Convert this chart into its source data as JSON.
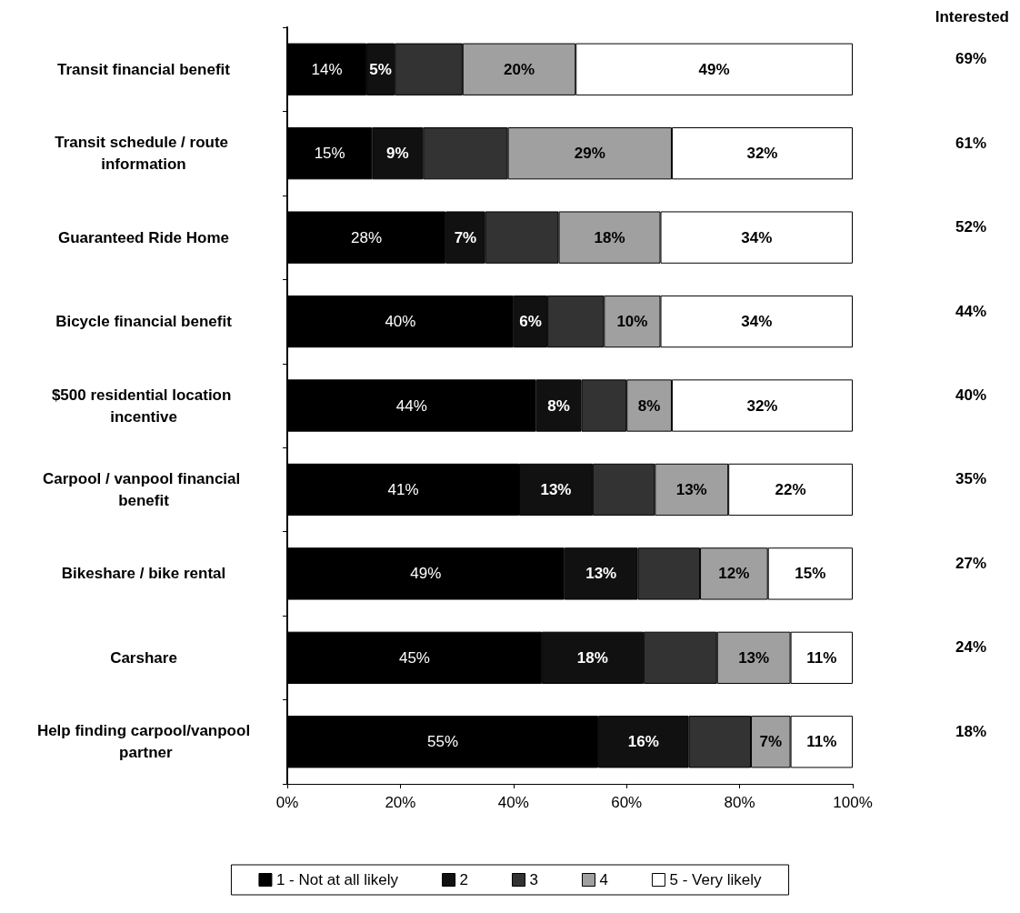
{
  "chart_data": {
    "type": "bar",
    "orientation": "horizontal",
    "stacked": true,
    "categories": [
      "Transit financial benefit",
      "Transit schedule / route information",
      "Guaranteed Ride Home",
      "Bicycle financial benefit",
      "$500 residential location incentive",
      "Carpool / vanpool financial benefit",
      "Bikeshare / bike rental",
      "Carshare",
      "Help finding carpool/vanpool partner"
    ],
    "series": [
      {
        "name": "1 - Not at all likely",
        "color": "#000000",
        "values": [
          14,
          15,
          28,
          40,
          44,
          41,
          49,
          45,
          55
        ],
        "value_labels": [
          "14%",
          "15%",
          "28%",
          "40%",
          "44%",
          "41%",
          "49%",
          "45%",
          "55%"
        ]
      },
      {
        "name": "2",
        "color": "#111111",
        "values": [
          5,
          9,
          7,
          6,
          8,
          13,
          13,
          18,
          16
        ],
        "value_labels": [
          "5%",
          "9%",
          "7%",
          "6%",
          "8%",
          "13%",
          "13%",
          "18%",
          "16%"
        ]
      },
      {
        "name": "3",
        "color": "#333333",
        "values": [
          12,
          15,
          13,
          10,
          8,
          11,
          11,
          13,
          11
        ]
      },
      {
        "name": "4",
        "color": "#a0a0a0",
        "values": [
          20,
          29,
          18,
          10,
          8,
          13,
          12,
          13,
          7
        ],
        "value_labels": [
          "20%",
          "29%",
          "18%",
          "10%",
          "8%",
          "13%",
          "12%",
          "13%",
          "7%"
        ]
      },
      {
        "name": "5 - Very likely",
        "color": "#ffffff",
        "values": [
          49,
          32,
          34,
          34,
          32,
          22,
          15,
          11,
          11
        ],
        "value_labels": [
          "49%",
          "32%",
          "34%",
          "34%",
          "32%",
          "22%",
          "15%",
          "11%",
          "11%"
        ]
      }
    ],
    "xlim": [
      0,
      100
    ],
    "xticks": [
      {
        "value": 0,
        "label": "0%"
      },
      {
        "value": 20,
        "label": "20%"
      },
      {
        "value": 40,
        "label": "40%"
      },
      {
        "value": 60,
        "label": "60%"
      },
      {
        "value": 80,
        "label": "80%"
      },
      {
        "value": 100,
        "label": "100%"
      }
    ],
    "grid": false,
    "legend": "bottom",
    "annotations": [
      "Interested",
      "69%",
      "61%",
      "52%",
      "44%",
      "40%",
      "35%",
      "27%",
      "24%",
      "18%"
    ]
  }
}
